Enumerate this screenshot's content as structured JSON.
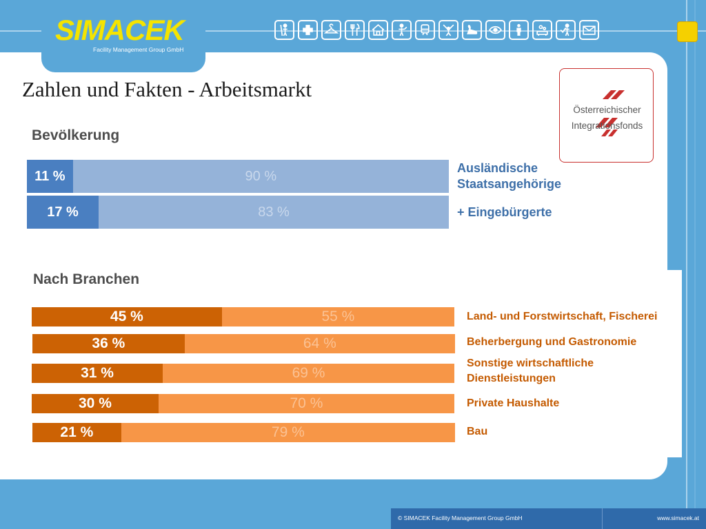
{
  "header": {
    "logo_name": "SIMACEK",
    "logo_subtitle": "Facility Management Group GmbH",
    "icons": [
      "cleaning-icon",
      "medical-cross-icon",
      "hanger-icon",
      "fork-knife-icon",
      "house-icon",
      "service-person-icon",
      "train-icon",
      "gymnast-icon",
      "swan-icon",
      "eye-icon",
      "person-icon",
      "care-icon",
      "security-icon",
      "mail-icon"
    ]
  },
  "title": "Zahlen und Fakten - Arbeitsmarkt",
  "partner_logo": {
    "line1": "Österreichischer",
    "line2": "Integrationsfonds"
  },
  "chart_data": [
    {
      "type": "bar",
      "title": "Bevölkerung",
      "stacked": true,
      "orientation": "horizontal",
      "categories": [
        [
          "Ausländische",
          "Staatsangehörige"
        ],
        [
          "+ Eingebürgerte"
        ]
      ],
      "series": [
        {
          "values": [
            11,
            17
          ],
          "labels": [
            "11 %",
            "17 %"
          ],
          "color": "#4a7fc1"
        },
        {
          "values": [
            90,
            83
          ],
          "labels": [
            "90 %",
            "83 %"
          ],
          "color": "#95b3d9"
        }
      ]
    },
    {
      "type": "bar",
      "title": "Nach Branchen",
      "stacked": true,
      "orientation": "horizontal",
      "categories": [
        [
          "Land- und Forstwirtschaft, Fischerei"
        ],
        [
          "Beherbergung und Gastronomie"
        ],
        [
          "Sonstige wirtschaftliche",
          "Dienstleistungen"
        ],
        [
          "Private Haushalte"
        ],
        [
          "Bau"
        ]
      ],
      "series": [
        {
          "values": [
            45,
            36,
            31,
            30,
            21
          ],
          "labels": [
            "45 %",
            "36 %",
            "31 %",
            "30 %",
            "21 %"
          ],
          "color": "#cc6204"
        },
        {
          "values": [
            55,
            64,
            69,
            70,
            79
          ],
          "labels": [
            "55 %",
            "64 %",
            "69 %",
            "70 %",
            "79 %"
          ],
          "color": "#f79647"
        }
      ]
    }
  ],
  "footer": {
    "copyright": "© SIMACEK Facility Management Group GmbH",
    "website": "www.simacek.at"
  }
}
